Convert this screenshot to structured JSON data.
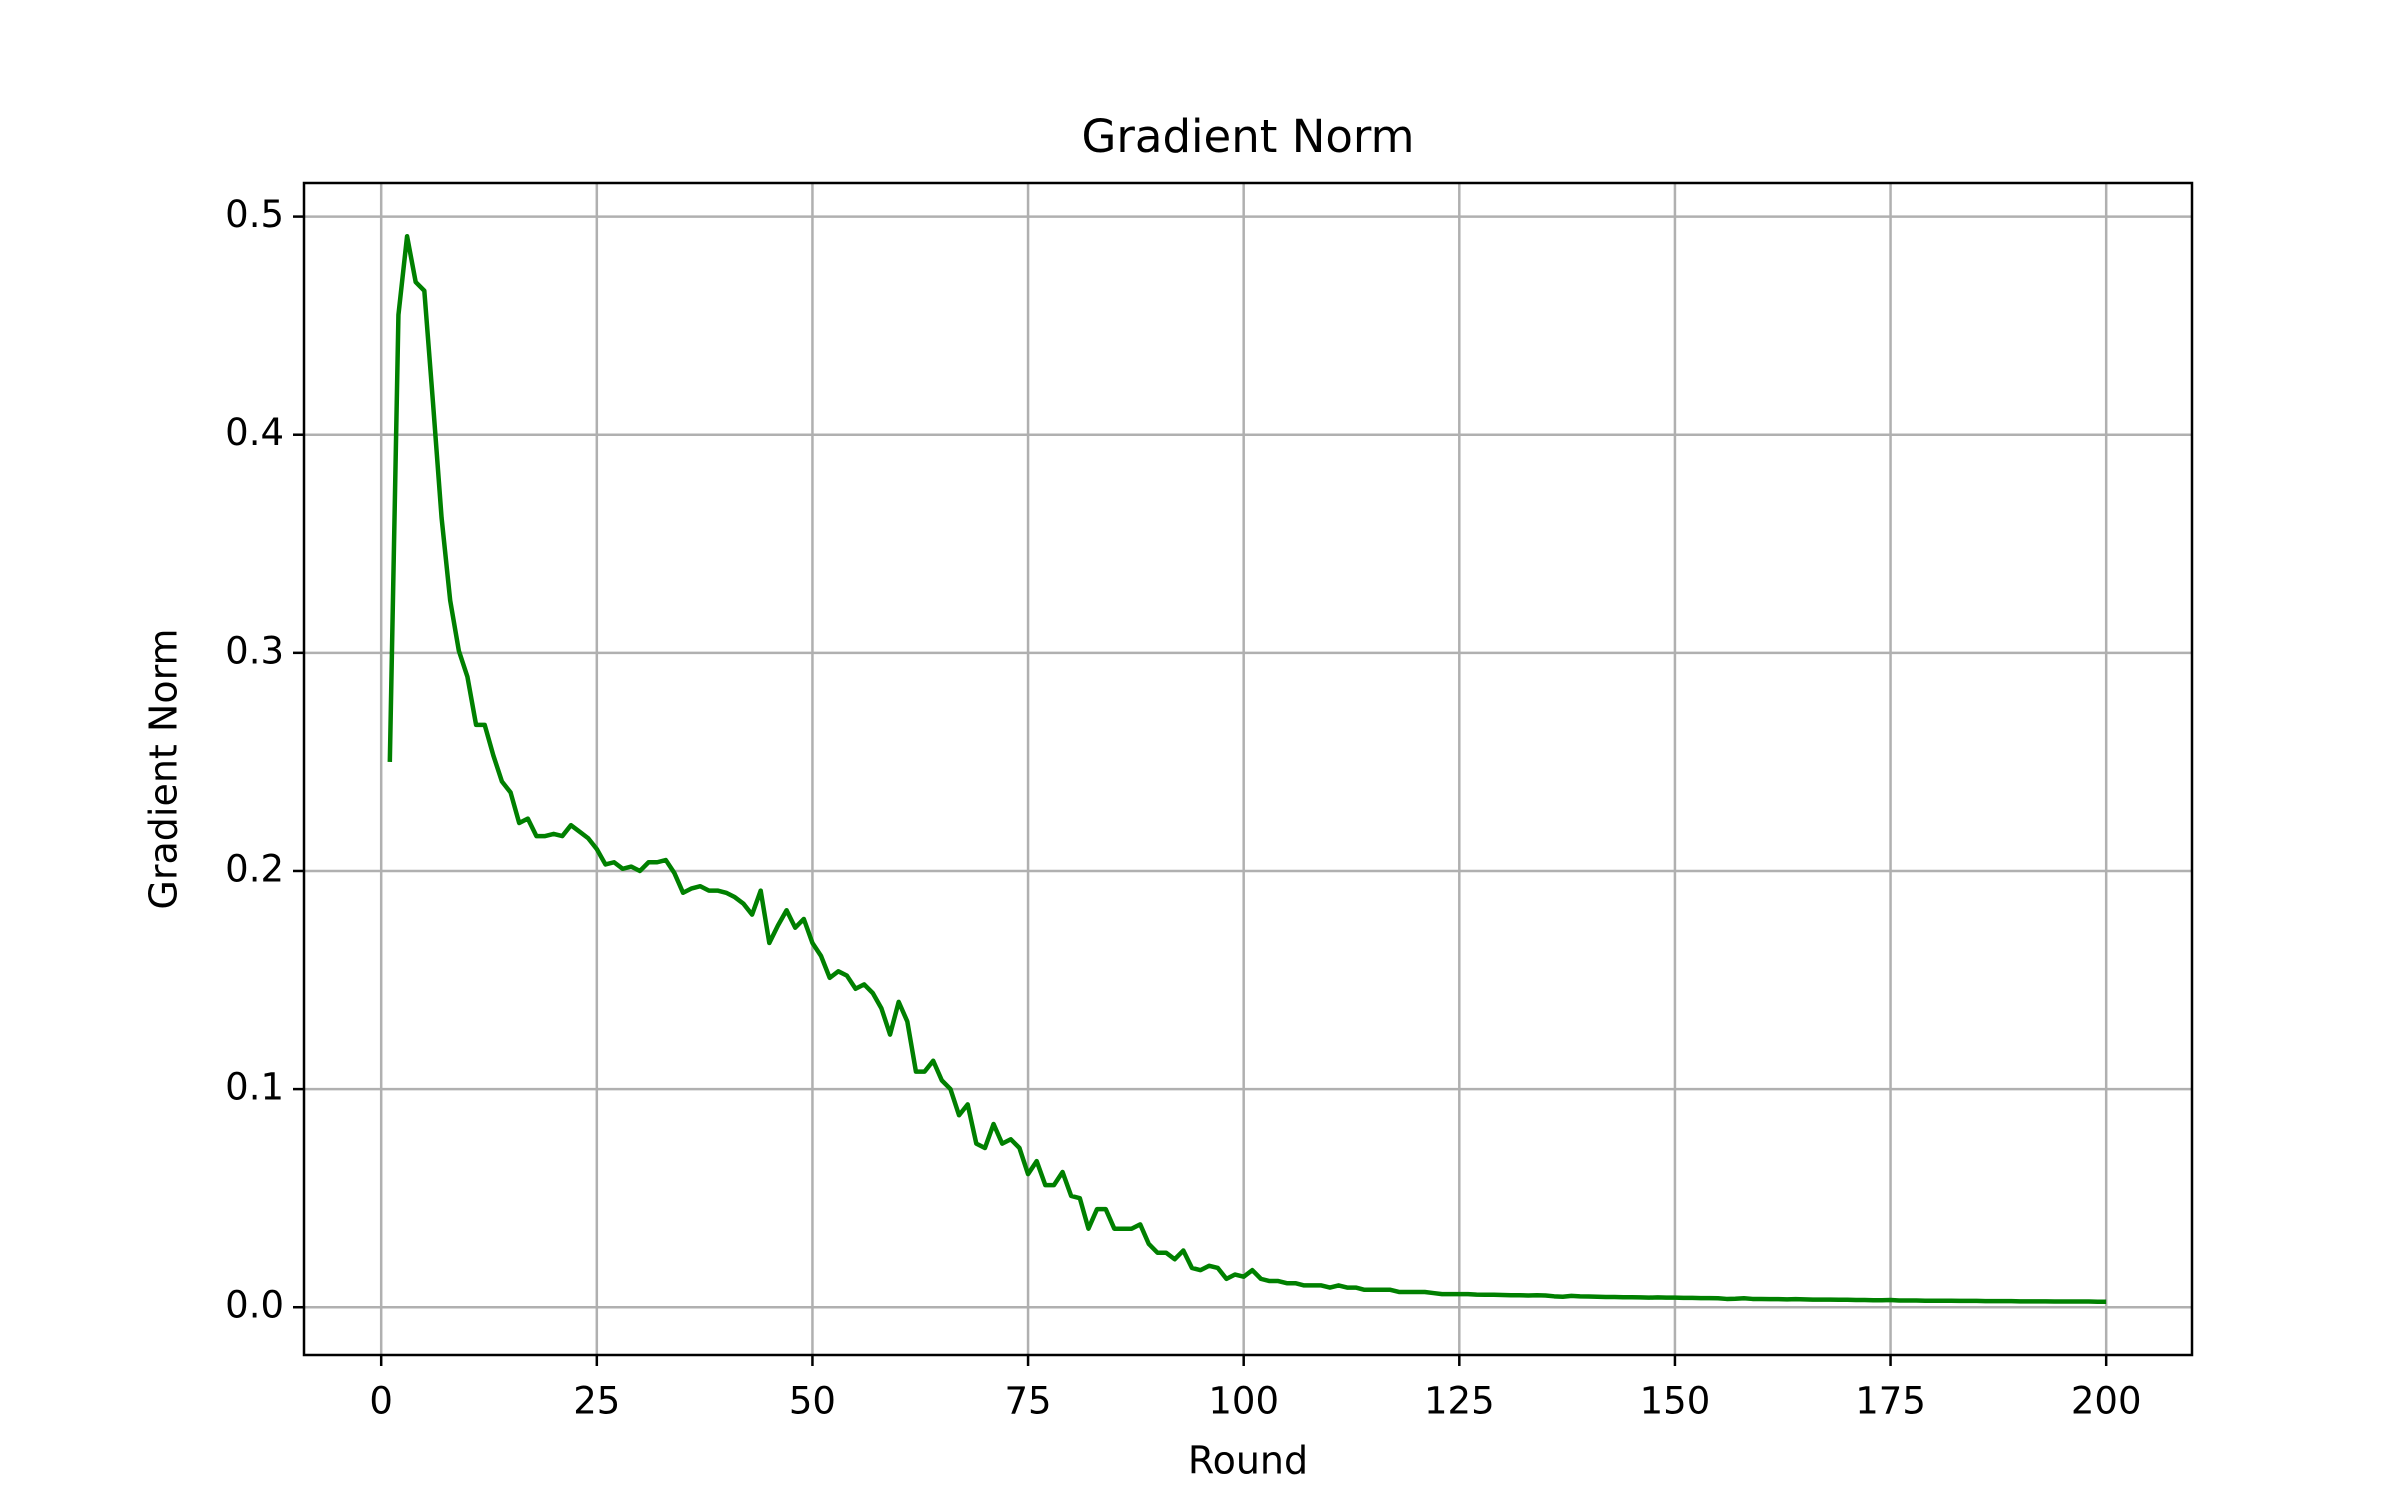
{
  "chart_data": {
    "type": "line",
    "title": "Gradient Norm",
    "x_label": "Round",
    "y_label": "Gradient Norm",
    "x": [
      1,
      2,
      3,
      4,
      5,
      6,
      7,
      8,
      9,
      10,
      11,
      12,
      13,
      14,
      15,
      16,
      17,
      18,
      19,
      20,
      21,
      22,
      23,
      24,
      25,
      26,
      27,
      28,
      29,
      30,
      31,
      32,
      33,
      34,
      35,
      36,
      37,
      38,
      39,
      40,
      41,
      42,
      43,
      44,
      45,
      46,
      47,
      48,
      49,
      50,
      51,
      52,
      53,
      54,
      55,
      56,
      57,
      58,
      59,
      60,
      61,
      62,
      63,
      64,
      65,
      66,
      67,
      68,
      69,
      70,
      71,
      72,
      73,
      74,
      75,
      76,
      77,
      78,
      79,
      80,
      81,
      82,
      83,
      84,
      85,
      86,
      87,
      88,
      89,
      90,
      91,
      92,
      93,
      94,
      95,
      96,
      97,
      98,
      99,
      100,
      101,
      102,
      103,
      104,
      105,
      106,
      107,
      108,
      109,
      110,
      111,
      112,
      113,
      114,
      115,
      116,
      117,
      118,
      119,
      120,
      121,
      122,
      123,
      124,
      125,
      126,
      127,
      128,
      129,
      130,
      131,
      132,
      133,
      134,
      135,
      136,
      137,
      138,
      139,
      140,
      141,
      142,
      143,
      144,
      145,
      146,
      147,
      148,
      149,
      150,
      151,
      152,
      153,
      154,
      155,
      156,
      157,
      158,
      159,
      160,
      161,
      162,
      163,
      164,
      165,
      166,
      167,
      168,
      169,
      170,
      171,
      172,
      173,
      174,
      175,
      176,
      177,
      178,
      179,
      180,
      181,
      182,
      183,
      184,
      185,
      186,
      187,
      188,
      189,
      190,
      191,
      192,
      193,
      194,
      195,
      196,
      197,
      198,
      199,
      200
    ],
    "series": [
      {
        "name": "Gradient Norm",
        "color": "#008000",
        "values": [
          0.25,
          0.455,
          0.491,
          0.47,
          0.466,
          0.415,
          0.362,
          0.324,
          0.301,
          0.289,
          0.267,
          0.267,
          0.253,
          0.241,
          0.236,
          0.222,
          0.224,
          0.216,
          0.216,
          0.217,
          0.216,
          0.221,
          0.218,
          0.215,
          0.21,
          0.203,
          0.204,
          0.201,
          0.202,
          0.2,
          0.204,
          0.204,
          0.205,
          0.199,
          0.19,
          0.192,
          0.193,
          0.191,
          0.191,
          0.19,
          0.188,
          0.185,
          0.18,
          0.191,
          0.167,
          0.175,
          0.182,
          0.174,
          0.178,
          0.167,
          0.161,
          0.151,
          0.154,
          0.152,
          0.146,
          0.148,
          0.144,
          0.137,
          0.125,
          0.14,
          0.131,
          0.108,
          0.108,
          0.113,
          0.104,
          0.1,
          0.088,
          0.093,
          0.075,
          0.073,
          0.084,
          0.075,
          0.077,
          0.073,
          0.061,
          0.067,
          0.056,
          0.056,
          0.062,
          0.051,
          0.05,
          0.036,
          0.045,
          0.045,
          0.036,
          0.036,
          0.036,
          0.038,
          0.029,
          0.025,
          0.025,
          0.022,
          0.026,
          0.018,
          0.017,
          0.019,
          0.018,
          0.013,
          0.015,
          0.014,
          0.017,
          0.013,
          0.012,
          0.012,
          0.011,
          0.011,
          0.01,
          0.01,
          0.01,
          0.009,
          0.01,
          0.009,
          0.009,
          0.008,
          0.008,
          0.008,
          0.008,
          0.007,
          0.007,
          0.007,
          0.007,
          0.0065,
          0.006,
          0.006,
          0.006,
          0.006,
          0.0058,
          0.0057,
          0.0057,
          0.0056,
          0.0055,
          0.0055,
          0.0054,
          0.0055,
          0.0054,
          0.005,
          0.0048,
          0.0052,
          0.005,
          0.0049,
          0.0048,
          0.0047,
          0.0047,
          0.0046,
          0.0046,
          0.0045,
          0.0044,
          0.0045,
          0.0044,
          0.0044,
          0.0043,
          0.0043,
          0.0042,
          0.0042,
          0.0041,
          0.0038,
          0.0039,
          0.0041,
          0.0038,
          0.0038,
          0.0037,
          0.0037,
          0.0036,
          0.0037,
          0.0036,
          0.0035,
          0.0035,
          0.0035,
          0.0034,
          0.0034,
          0.0033,
          0.0033,
          0.0032,
          0.0032,
          0.0033,
          0.0031,
          0.0031,
          0.0031,
          0.003,
          0.003,
          0.003,
          0.003,
          0.0029,
          0.0029,
          0.0029,
          0.0028,
          0.0028,
          0.0028,
          0.0028,
          0.0027,
          0.0027,
          0.0027,
          0.0027,
          0.0026,
          0.0026,
          0.0026,
          0.0026,
          0.0026,
          0.0025,
          0.0025
        ]
      }
    ],
    "xlim": [
      -8.95,
      209.95
    ],
    "xticks": [
      0,
      25,
      50,
      75,
      100,
      125,
      150,
      175,
      200
    ],
    "ylim": [
      -0.0219,
      0.5154
    ],
    "yticks": [
      0.0,
      0.1,
      0.2,
      0.3,
      0.4,
      0.5
    ],
    "ytick_labels_fixed": null,
    "grid": true
  }
}
